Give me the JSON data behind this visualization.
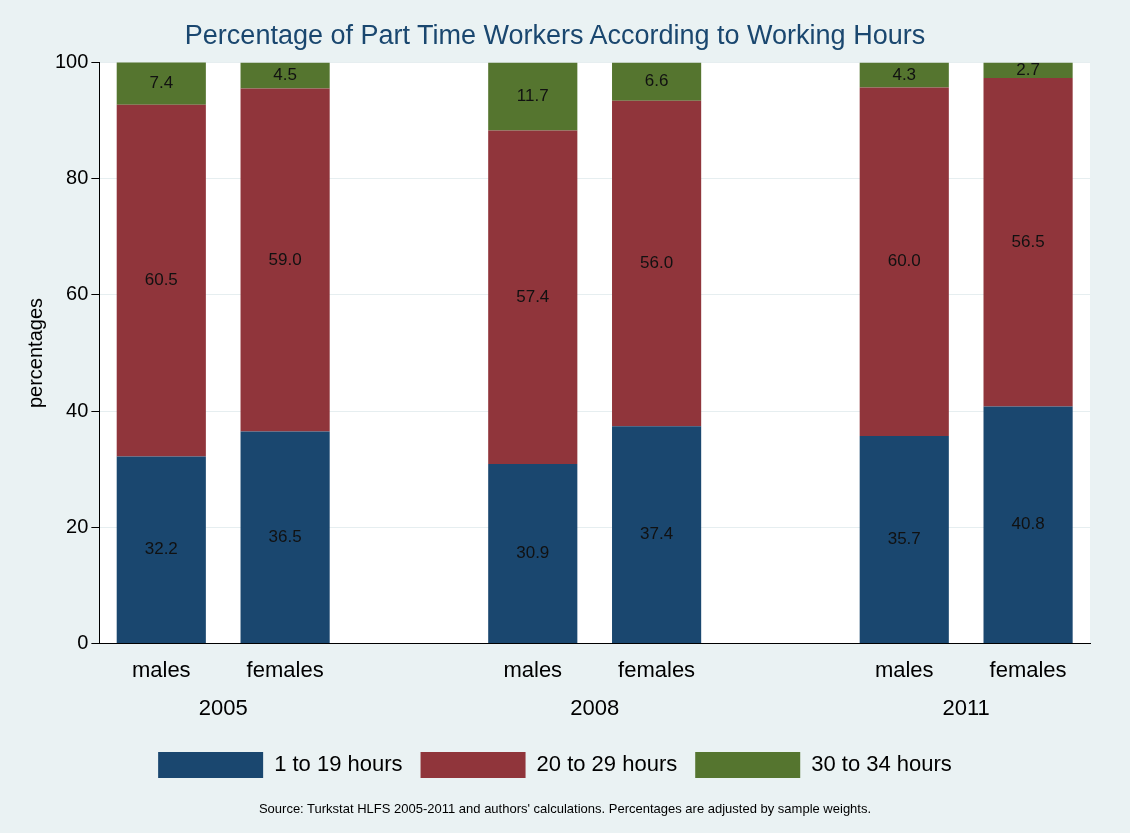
{
  "chart_data": {
    "type": "bar",
    "title": "Percentage of Part Time Workers According to Working Hours",
    "ylabel": "percentages",
    "categories": [
      "males",
      "females",
      null,
      "males",
      "females",
      null,
      "males",
      "females"
    ],
    "series": [
      {
        "name": "1 to 19 hours",
        "color": "#1a476f",
        "values": [
          32.2,
          36.5,
          null,
          30.9,
          37.4,
          null,
          35.7,
          40.8
        ],
        "value_labels": [
          "32.2",
          "36.5",
          null,
          "30.9",
          "37.4",
          null,
          "35.7",
          "40.8"
        ]
      },
      {
        "name": "20 to 29 hours",
        "color": "#90353b",
        "values": [
          60.5,
          59.0,
          null,
          57.4,
          56.0,
          null,
          60.0,
          56.5
        ],
        "value_labels": [
          "60.5",
          "59.0",
          null,
          "57.4",
          "56.0",
          null,
          "60.0",
          "56.5"
        ]
      },
      {
        "name": "30 to 34 hours",
        "color": "#55752f",
        "values": [
          7.4,
          4.5,
          null,
          11.7,
          6.6,
          null,
          4.3,
          2.7
        ],
        "value_labels": [
          "7.4",
          "4.5",
          null,
          "11.7",
          "6.6",
          null,
          "4.3",
          "2.7"
        ]
      }
    ],
    "stacked": true,
    "ylim": [
      0,
      100
    ],
    "yticks": [
      0,
      20,
      40,
      60,
      80,
      100
    ],
    "grid": "y",
    "legend": "bottom",
    "annotations": [
      "2005",
      "2008",
      "2011",
      "Source: Turkstat HLFS 2005-2011 and authors' calculations. Percentages are adjusted by sample weights."
    ]
  }
}
